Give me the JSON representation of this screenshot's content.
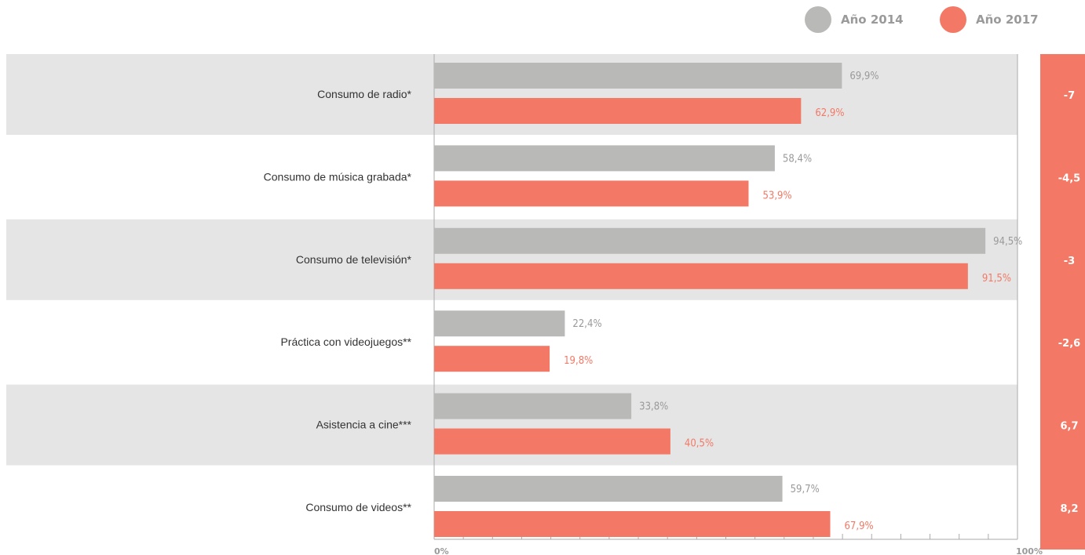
{
  "colors": {
    "series_2014": "#b9b9b8",
    "series_2017": "#f37966",
    "band": "#e5e5e5",
    "axis": "#aaaaaa"
  },
  "legend": [
    {
      "label": "Año 2014",
      "color": "#b9b9b8"
    },
    {
      "label": "Año 2017",
      "color": "#f37966"
    }
  ],
  "chart_data": {
    "type": "bar",
    "orientation": "horizontal",
    "categories": [
      "Consumo de radio*",
      "Consumo de música grabada*",
      "Consumo de televisión*",
      "Práctica con videojuegos**",
      "Asistencia a cine***",
      "Consumo de videos**"
    ],
    "series": [
      {
        "name": "Año 2014",
        "values": [
          69.9,
          58.4,
          94.5,
          22.4,
          33.8,
          59.7
        ],
        "labels": [
          "69,9%",
          "58,4%",
          "94,5%",
          "22,4%",
          "33,8%",
          "59,7%"
        ]
      },
      {
        "name": "Año 2017",
        "values": [
          62.9,
          53.9,
          91.5,
          19.8,
          40.5,
          67.9
        ],
        "labels": [
          "62,9%",
          "53,9%",
          "91,5%",
          "19,8%",
          "40,5%",
          "67,9%"
        ]
      }
    ],
    "differences": [
      "-7",
      "-4,5",
      "-3",
      "-2,6",
      "6,7",
      "8,2"
    ],
    "xlim": [
      0,
      100
    ],
    "x_tick_labels": [
      "0%",
      "100%"
    ],
    "minor_ticks": 20,
    "legend_position": "top-right",
    "grid": false
  }
}
